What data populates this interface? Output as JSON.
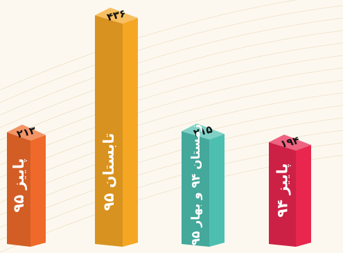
{
  "chart_data": {
    "type": "bar",
    "title": "",
    "xlabel": "",
    "ylabel": "",
    "ylim": [
      0,
      436
    ],
    "grid": false,
    "categories": [
      "پاییز ۹۵",
      "تابستان ۹۵",
      "زمستان ۹۴ و بهار ۹۵",
      "پاییز ۹۴"
    ],
    "values": [
      213,
      436,
      215,
      194
    ],
    "value_labels": [
      "۲۱۳",
      "۴۳۶",
      "۲۱۵",
      "۱۹۴"
    ],
    "colors": [
      "#ef6a2a",
      "#f5a623",
      "#4dbfb0",
      "#e8264e"
    ]
  }
}
